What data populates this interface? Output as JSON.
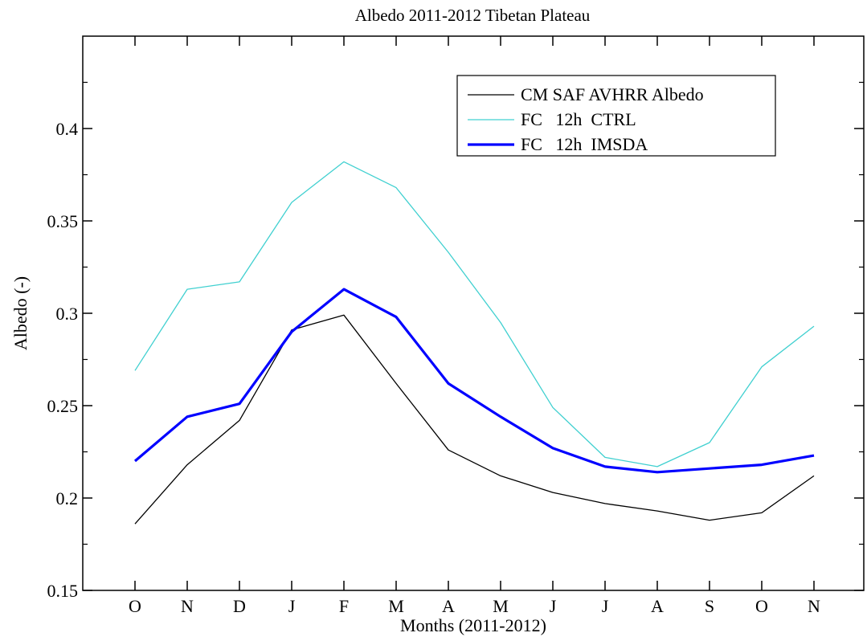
{
  "chart_data": {
    "type": "line",
    "title": "Albedo 2011-2012 Tibetan Plateau",
    "xlabel": "Months (2011-2012)",
    "ylabel": "Albedo (-)",
    "categories": [
      "O",
      "N",
      "D",
      "J",
      "F",
      "M",
      "A",
      "M",
      "J",
      "J",
      "A",
      "S",
      "O",
      "N"
    ],
    "ylim": [
      0.15,
      0.45
    ],
    "yticks": [
      0.15,
      0.2,
      0.25,
      0.3,
      0.35,
      0.4
    ],
    "ytick_labels": [
      "0.15",
      "0.2",
      "0.25",
      "0.3",
      "0.35",
      "0.4"
    ],
    "grid": false,
    "legend_position": "top-right",
    "series": [
      {
        "name": "CM SAF AVHRR Albedo",
        "color": "#000000",
        "values": [
          0.186,
          0.218,
          0.242,
          0.291,
          0.299,
          0.262,
          0.226,
          0.212,
          0.203,
          0.197,
          0.193,
          0.188,
          0.192,
          0.212
        ]
      },
      {
        "name": "FC   12h  CTRL",
        "color": "#40d0d0",
        "values": [
          0.269,
          0.313,
          0.317,
          0.36,
          0.382,
          0.368,
          0.333,
          0.295,
          0.249,
          0.222,
          0.217,
          0.23,
          0.271,
          0.293
        ]
      },
      {
        "name": "FC   12h  IMSDA",
        "color": "#0000ff",
        "values": [
          0.22,
          0.244,
          0.251,
          0.29,
          0.313,
          0.298,
          0.262,
          0.244,
          0.227,
          0.217,
          0.214,
          0.216,
          0.218,
          0.223
        ]
      }
    ]
  }
}
